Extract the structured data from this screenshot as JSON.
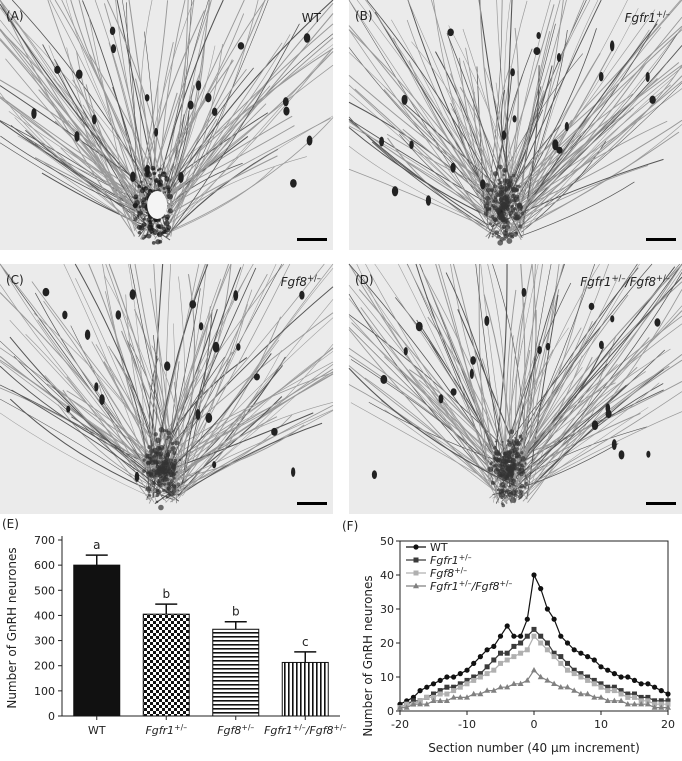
{
  "panels": [
    {
      "label": "(A)",
      "genotype": [
        "WT"
      ]
    },
    {
      "label": "(B)",
      "genotype": [
        "Fgfr1",
        "+/–"
      ]
    },
    {
      "label": "(C)",
      "genotype": [
        "Fgf8",
        "+/–"
      ]
    },
    {
      "label": "(D)",
      "genotype": [
        "Fgfr1",
        "+/–",
        "/Fgf8",
        "+/–"
      ]
    }
  ],
  "chart_labels": [
    "(E)",
    "(F)"
  ],
  "chart_data": [
    {
      "type": "bar",
      "y_label": "Number of GnRH neurones",
      "categories": [
        [
          "WT"
        ],
        [
          "Fgfr1",
          "+/–"
        ],
        [
          "Fgf8",
          "+/–"
        ],
        [
          "Fgfr1",
          "+/–",
          "/Fgf8",
          "+/–"
        ]
      ],
      "values": [
        600,
        405,
        345,
        213
      ],
      "errors": [
        40,
        40,
        30,
        42
      ],
      "annotations": [
        "a",
        "b",
        "b",
        "c"
      ],
      "ylim": [
        0,
        700
      ],
      "yticks": [
        0,
        100,
        200,
        300,
        400,
        500,
        600,
        700
      ]
    },
    {
      "type": "line",
      "x_label": "Section number (40 μm increment)",
      "y_label": "Number of GnRH neurones",
      "x": [
        -20,
        -19,
        -18,
        -17,
        -16,
        -15,
        -14,
        -13,
        -12,
        -11,
        -10,
        -9,
        -8,
        -7,
        -6,
        -5,
        -4,
        -3,
        -2,
        -1,
        0,
        1,
        2,
        3,
        4,
        5,
        6,
        7,
        8,
        9,
        10,
        11,
        12,
        13,
        14,
        15,
        16,
        17,
        18,
        19,
        20
      ],
      "xlim": [
        -20,
        20
      ],
      "xticks": [
        -20,
        -10,
        0,
        10,
        20
      ],
      "ylim": [
        0,
        50
      ],
      "yticks": [
        0,
        10,
        20,
        30,
        40,
        50
      ],
      "series": [
        {
          "name": [
            "WT"
          ],
          "color": "#111111",
          "marker": "circle",
          "values": [
            2,
            3,
            4,
            6,
            7,
            8,
            9,
            10,
            10,
            11,
            12,
            14,
            16,
            18,
            19,
            22,
            25,
            22,
            22,
            27,
            40,
            36,
            30,
            27,
            22,
            20,
            18,
            17,
            16,
            15,
            13,
            12,
            11,
            10,
            10,
            9,
            8,
            8,
            7,
            6,
            5
          ]
        },
        {
          "name": [
            "Fgfr1",
            "+/–"
          ],
          "color": "#3a3a3a",
          "marker": "square",
          "values": [
            1,
            2,
            3,
            3,
            4,
            5,
            6,
            7,
            7,
            8,
            9,
            10,
            11,
            13,
            15,
            17,
            17,
            19,
            20,
            22,
            24,
            22,
            20,
            17,
            16,
            14,
            12,
            11,
            10,
            9,
            8,
            7,
            7,
            6,
            5,
            5,
            4,
            4,
            3,
            3,
            3
          ]
        },
        {
          "name": [
            "Fgf8",
            "+/–"
          ],
          "color": "#b0b0b0",
          "marker": "square",
          "values": [
            1,
            2,
            2,
            3,
            4,
            4,
            5,
            5,
            6,
            7,
            8,
            9,
            10,
            11,
            12,
            14,
            15,
            16,
            17,
            18,
            22,
            20,
            18,
            16,
            14,
            12,
            11,
            10,
            9,
            8,
            7,
            6,
            6,
            5,
            4,
            4,
            3,
            3,
            2,
            2,
            2
          ]
        },
        {
          "name": [
            "Fgfr1",
            "+/–",
            "/Fgf8",
            "+/–"
          ],
          "color": "#808080",
          "marker": "triangle",
          "values": [
            1,
            1,
            2,
            2,
            2,
            3,
            3,
            3,
            4,
            4,
            4,
            5,
            5,
            6,
            6,
            7,
            7,
            8,
            8,
            9,
            12,
            10,
            9,
            8,
            7,
            7,
            6,
            5,
            5,
            4,
            4,
            3,
            3,
            3,
            2,
            2,
            2,
            2,
            1,
            1,
            1
          ]
        }
      ]
    }
  ]
}
